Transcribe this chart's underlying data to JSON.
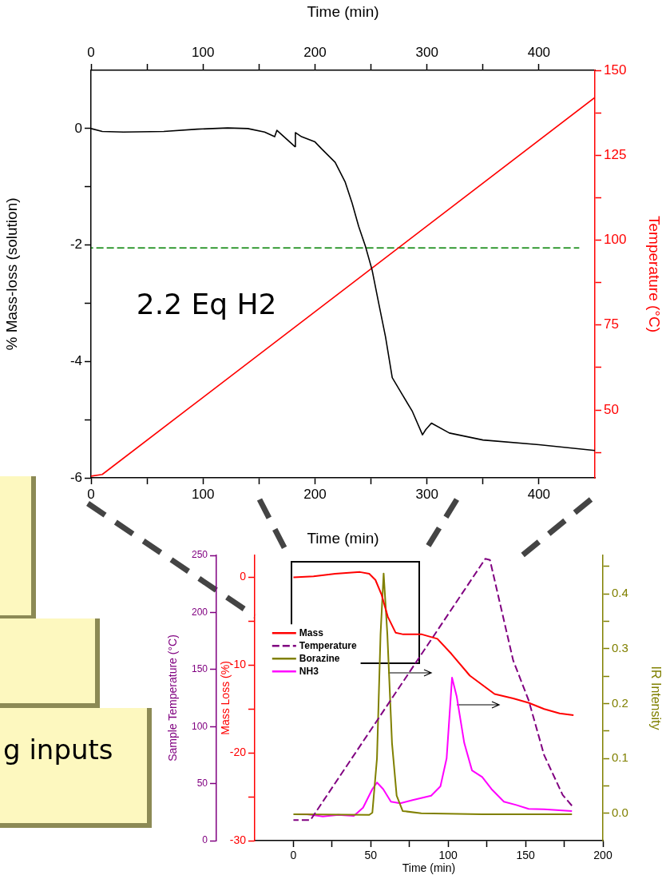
{
  "chart_data": [
    {
      "type": "line",
      "xlabel": "Time (min)",
      "x2label": "Time (min)",
      "ylabel": "% Mass-loss (solution)",
      "y2label": "Temperature (°C)",
      "xlim": [
        0,
        450
      ],
      "xticks": [
        0,
        {
          "value": 50,
          "label": null
        },
        100,
        {
          "value": 150,
          "label": null
        },
        200,
        {
          "value": 250,
          "label": null
        },
        300,
        {
          "value": 350,
          "label": null
        },
        400
      ],
      "x2lim": [
        0,
        450
      ],
      "x2ticks": [
        0,
        {
          "value": 50,
          "label": null
        },
        100,
        {
          "value": 150,
          "label": null
        },
        200,
        {
          "value": 250,
          "label": null
        },
        300,
        {
          "value": 350,
          "label": null
        },
        400
      ],
      "ylim": [
        -6,
        1
      ],
      "yticks": [
        -6,
        {
          "value": -5,
          "label": null
        },
        -4,
        {
          "value": -3,
          "label": null
        },
        -2,
        {
          "value": -1,
          "label": null
        },
        0
      ],
      "y2lim": [
        30,
        150
      ],
      "y2ticks": [
        {
          "value": 37.5,
          "label": null
        },
        50,
        {
          "value": 62.5,
          "label": null
        },
        75,
        {
          "value": 87.5,
          "label": null
        },
        100,
        {
          "value": 112.5,
          "label": null
        },
        125,
        {
          "value": 137.5,
          "label": null
        },
        150
      ],
      "grid": false,
      "legend": false,
      "marker": "none",
      "annotations": [
        "2.2 Eq H2"
      ],
      "series": [
        {
          "color": "#000000",
          "x": [
            0,
            10,
            29,
            65,
            95,
            122,
            140,
            155,
            164,
            166,
            182,
            182.5,
            188,
            200,
            206,
            218,
            227,
            233,
            239,
            245,
            251,
            257,
            263,
            269,
            278,
            287,
            296,
            299,
            304,
            320,
            350,
            400,
            450
          ],
          "values": [
            0,
            -0.05,
            -0.06,
            -0.05,
            -0.01,
            0.01,
            0,
            -0.06,
            -0.14,
            -0.03,
            -0.31,
            -0.07,
            -0.14,
            -0.23,
            -0.35,
            -0.58,
            -0.92,
            -1.27,
            -1.68,
            -2.02,
            -2.43,
            -3.01,
            -3.58,
            -4.28,
            -4.57,
            -4.86,
            -5.26,
            -5.17,
            -5.06,
            -5.23,
            -5.35,
            -5.43,
            -5.53
          ]
        },
        {
          "color": "#ff0000",
          "axis": "y2",
          "x": [
            0,
            10,
            450
          ],
          "values": [
            30.5,
            31,
            142
          ]
        },
        {
          "color": "#008000",
          "line_style": "dashed",
          "x": [
            0,
            436
          ],
          "values": [
            -2.05,
            -2.05
          ]
        }
      ]
    },
    {
      "type": "line",
      "xlabel": "Time (min)",
      "ylabel": "Mass Loss (%)",
      "y2label": "IR Intensity",
      "y3label": "Sample Temperature (°C)",
      "xlim": [
        -25,
        200
      ],
      "xticks": [
        0,
        {
          "value": 25,
          "label": null
        },
        50,
        {
          "value": 75,
          "label": null
        },
        100,
        {
          "value": 125,
          "label": null
        },
        150,
        {
          "value": 175,
          "label": null
        },
        200
      ],
      "ylim": [
        -30,
        2.5
      ],
      "yticks": [
        -30,
        {
          "value": -25,
          "label": null
        },
        -20,
        {
          "value": -15,
          "label": null
        },
        -10,
        {
          "value": -5,
          "label": null
        },
        0
      ],
      "y2lim": [
        -0.05,
        0.47
      ],
      "y2ticks": [
        {
          "value": 0,
          "label": "0.0"
        },
        {
          "value": 0.05,
          "label": null
        },
        0.1,
        {
          "value": 0.15,
          "label": null
        },
        0.2,
        {
          "value": 0.25,
          "label": null
        },
        0.3,
        {
          "value": 0.35,
          "label": null
        },
        0.4,
        {
          "value": 0.45,
          "label": null
        }
      ],
      "y3lim": [
        0,
        250
      ],
      "y3ticks": [
        0,
        50,
        100,
        150,
        200,
        250
      ],
      "grid": false,
      "legend": "left",
      "marker": "none",
      "series": [
        {
          "name": "Mass",
          "color": "#ff0000",
          "x": [
            0,
            13,
            27,
            43,
            49,
            53,
            57,
            61,
            66,
            71,
            83,
            93,
            102,
            114,
            130,
            142,
            152,
            162,
            172,
            181
          ],
          "values": [
            0,
            0.1,
            0.4,
            0.6,
            0.4,
            -0.3,
            -2,
            -4.5,
            -6.3,
            -6.5,
            -6.5,
            -7,
            -8.7,
            -11.2,
            -13.3,
            -13.8,
            -14.3,
            -15,
            -15.5,
            -15.7
          ]
        },
        {
          "name": "Temperature",
          "color": "#800080",
          "line_style": "dashed",
          "axis": "y3",
          "x": [
            0,
            11,
            124,
            127,
            142,
            152,
            162,
            174,
            181
          ],
          "values": [
            18,
            18,
            247,
            246,
            158,
            123,
            75,
            40,
            29
          ]
        },
        {
          "name": "Borazine",
          "color": "#808000",
          "axis": "y2",
          "x": [
            0,
            49,
            51,
            54,
            56.3,
            58.3,
            60.7,
            63.7,
            66.7,
            70.6,
            82.6,
            122,
            180
          ],
          "values": [
            -0.002,
            -0.003,
            0.001,
            0.1,
            0.326,
            0.437,
            0.326,
            0.128,
            0.032,
            0.004,
            0,
            -0.002,
            -0.002
          ]
        },
        {
          "name": "NH3",
          "color": "#ff00ff",
          "axis": "y2",
          "x": [
            1,
            9,
            19,
            29,
            39,
            45,
            51,
            54,
            58,
            63,
            69,
            77,
            83,
            89,
            95,
            99,
            102.5,
            105.5,
            110.4,
            115.4,
            122,
            128,
            136,
            144,
            152,
            162,
            180
          ],
          "values": [
            -0.002,
            -0.002,
            -0.006,
            -0.003,
            -0.005,
            0.01,
            0.044,
            0.056,
            0.044,
            0.021,
            0.018,
            0.024,
            0.028,
            0.032,
            0.049,
            0.1,
            0.247,
            0.213,
            0.128,
            0.078,
            0.066,
            0.044,
            0.021,
            0.015,
            0.008,
            0.007,
            0.004
          ]
        }
      ]
    },
    {
      "type": "other",
      "annotations": [
        "g inputs"
      ]
    }
  ]
}
